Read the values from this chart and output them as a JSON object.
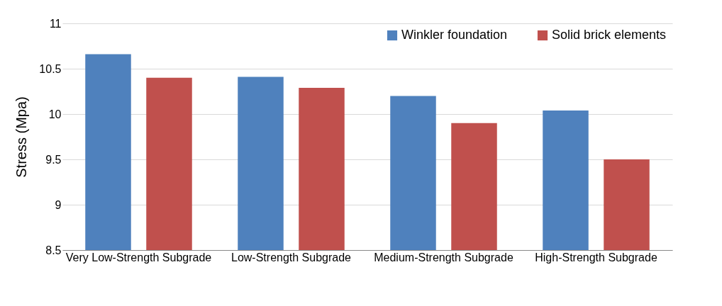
{
  "chart_data": {
    "type": "bar",
    "ylabel": "Stress (Mpa)",
    "categories": [
      "Very Low-Strength Subgrade",
      "Low-Strength Subgrade",
      "Medium-Strength Subgrade",
      "High-Strength Subgrade"
    ],
    "series": [
      {
        "name": "Winkler foundation",
        "color": "#4f81bd",
        "values": [
          10.66,
          10.41,
          10.2,
          10.04
        ]
      },
      {
        "name": "Solid brick elements",
        "color": "#c0504d",
        "values": [
          10.4,
          10.29,
          9.9,
          9.5
        ]
      }
    ],
    "ylim": [
      8.5,
      11
    ],
    "yticks": [
      8.5,
      9,
      9.5,
      10,
      10.5,
      11
    ],
    "grid": "y",
    "legend": "top right"
  }
}
